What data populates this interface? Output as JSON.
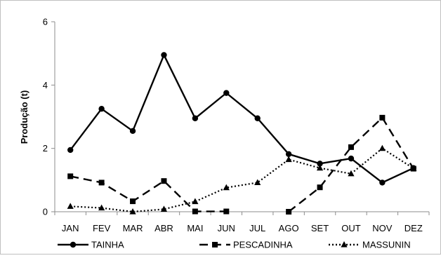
{
  "chart_data": {
    "type": "line",
    "title": "",
    "xlabel": "",
    "ylabel": "Produção (t)",
    "ylim": [
      0,
      6
    ],
    "yticks": [
      0,
      2,
      4,
      6
    ],
    "grid": false,
    "legend_position": "bottom",
    "categories": [
      "JAN",
      "FEV",
      "MAR",
      "ABR",
      "MAI",
      "JUN",
      "JUL",
      "AGO",
      "SET",
      "OUT",
      "NOV",
      "DEZ"
    ],
    "series": [
      {
        "name": "TAINHA",
        "line_style": "solid",
        "marker": "circle",
        "color": "#000000",
        "values": [
          1.95,
          3.25,
          2.55,
          4.95,
          2.95,
          3.75,
          2.95,
          1.82,
          1.52,
          1.68,
          0.92,
          1.38
        ]
      },
      {
        "name": "PESCADINHA",
        "line_style": "dashed",
        "marker": "square",
        "color": "#000000",
        "values": [
          1.12,
          0.92,
          0.33,
          0.97,
          0.01,
          0.01,
          null,
          0.0,
          0.77,
          2.04,
          2.97,
          1.36
        ]
      },
      {
        "name": "MASSUNIN",
        "line_style": "dotted",
        "marker": "triangle",
        "color": "#000000",
        "values": [
          0.17,
          0.12,
          0.0,
          0.08,
          0.32,
          0.76,
          0.92,
          1.65,
          1.38,
          1.2,
          2.0,
          1.37
        ]
      }
    ]
  }
}
